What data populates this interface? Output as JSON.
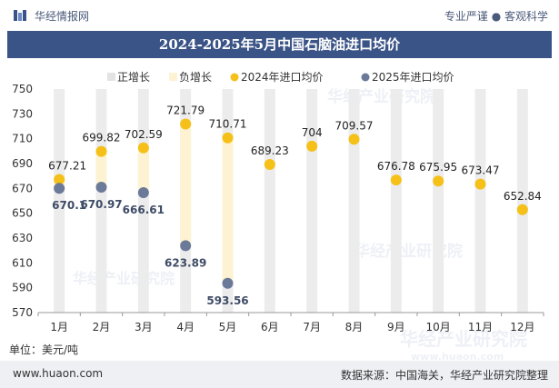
{
  "header": {
    "brand": "华经情报网",
    "tagline": "专业严谨 ● 客观科学"
  },
  "title": "2024-2025年5月中国石脑油进口均价",
  "footer": {
    "unit": "单位：美元/吨",
    "url": "www.huaon.com",
    "source": "数据来源：中国海关，华经产业研究院整理"
  },
  "watermark": {
    "cn": "华经产业研究院",
    "en": "www.huaon.com"
  },
  "colors": {
    "header_band": "#3b5487",
    "series_2024": "#f5c018",
    "series_2025": "#6b7a99",
    "positive_bar": "#e3e3e3",
    "negative_bar": "#fdf3d2"
  },
  "chart_data": {
    "type": "scatter",
    "title": "2024-2025年5月中国石脑油进口均价",
    "ylabel": "美元/吨",
    "ylim": [
      570,
      750
    ],
    "yticks": [
      570,
      590,
      610,
      630,
      650,
      670,
      690,
      710,
      730,
      750
    ],
    "categories": [
      "1月",
      "2月",
      "3月",
      "4月",
      "5月",
      "6月",
      "7月",
      "8月",
      "9月",
      "10月",
      "11月",
      "12月"
    ],
    "legend": [
      "正增长",
      "负增长",
      "2024年进口均价",
      "2025年进口均价"
    ],
    "legend_position": "top",
    "series": [
      {
        "name": "2024年进口均价",
        "values": [
          677.21,
          699.82,
          702.59,
          721.79,
          710.71,
          689.23,
          704,
          709.57,
          676.78,
          675.95,
          673.47,
          652.84
        ]
      },
      {
        "name": "2025年进口均价",
        "values": [
          670.1,
          670.97,
          666.61,
          623.89,
          593.56,
          null,
          null,
          null,
          null,
          null,
          null,
          null
        ]
      }
    ],
    "labels_2024": [
      "677.21",
      "699.82",
      "702.59",
      "721.79",
      "710.71",
      "689.23",
      "704",
      "709.57",
      "676.78",
      "675.95",
      "673.47",
      "652.84"
    ],
    "labels_2025": [
      "670.1",
      "670.97",
      "666.61",
      "623.89",
      "593.56"
    ]
  }
}
